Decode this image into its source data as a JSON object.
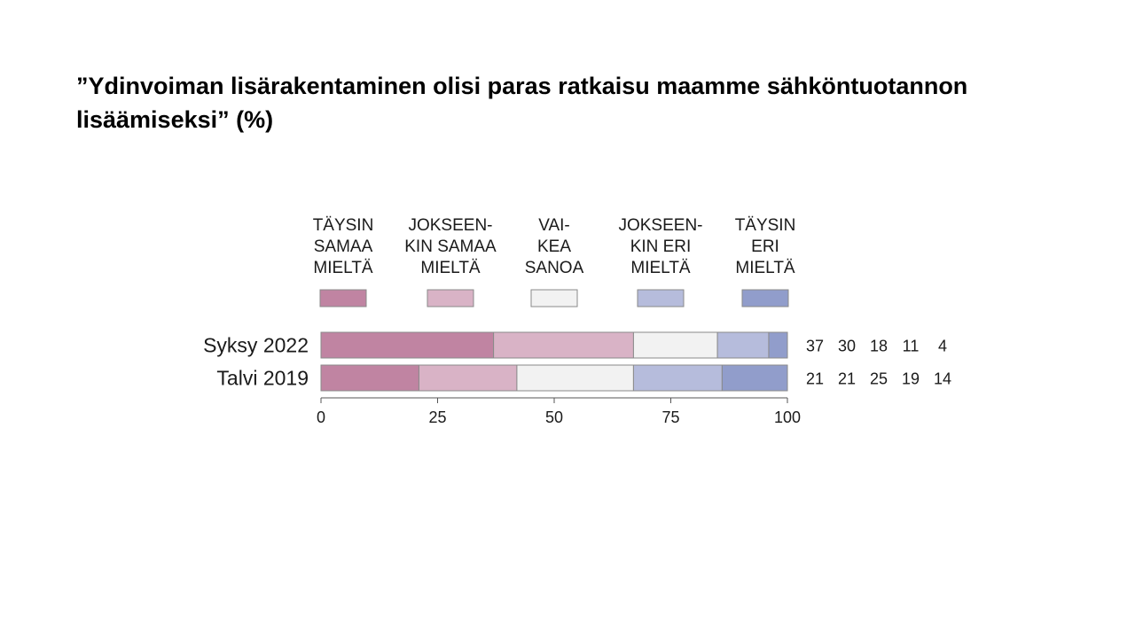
{
  "title": "”Ydinvoiman lisärakentaminen olisi paras ratkaisu maamme sähköntuotannon lisäämiseksi” (%)",
  "chart_data": {
    "type": "bar",
    "orientation": "horizontal",
    "stacked": true,
    "categories": [
      "Syksy 2022",
      "Talvi 2019"
    ],
    "series": [
      {
        "name": "TÄYSIN SAMAA MIELTÄ",
        "legend_lines": [
          "TÄYSIN",
          "SAMAA",
          "MIELTÄ"
        ],
        "color": "#c084a2",
        "values": [
          37,
          21
        ]
      },
      {
        "name": "JOKSEEN-KIN SAMAA MIELTÄ",
        "legend_lines": [
          "JOKSEEN-",
          "KIN SAMAA",
          "MIELTÄ"
        ],
        "color": "#d9b3c6",
        "values": [
          30,
          21
        ]
      },
      {
        "name": "VAI-KEA SANOA",
        "legend_lines": [
          "VAI-",
          "KEA",
          "SANOA"
        ],
        "color": "#f2f2f2",
        "values": [
          18,
          25
        ]
      },
      {
        "name": "JOKSEEN-KIN ERI MIELTÄ",
        "legend_lines": [
          "JOKSEEN-",
          "KIN ERI",
          "MIELTÄ"
        ],
        "color": "#b6bcdc",
        "values": [
          11,
          19
        ]
      },
      {
        "name": "TÄYSIN ERI MIELTÄ",
        "legend_lines": [
          "TÄYSIN",
          "ERI",
          "MIELTÄ"
        ],
        "color": "#919dcb",
        "values": [
          4,
          14
        ]
      }
    ],
    "xlim": [
      0,
      100
    ],
    "xticks": [
      0,
      25,
      50,
      75,
      100
    ],
    "legend": "top",
    "value_labels": "right",
    "grid": false
  }
}
